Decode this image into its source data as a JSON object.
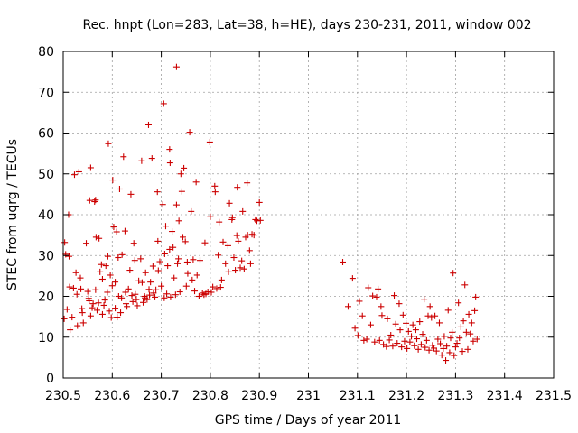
{
  "chart_data": {
    "type": "scatter",
    "title": "Rec. hnpt (Lon=283, Lat=38, h=HE), days 230-231, 2011, window 002",
    "xlabel": "GPS time / Days of year 2011",
    "ylabel": "STEC from uqrg / TECUs",
    "xlim": [
      230.5,
      231.5
    ],
    "ylim": [
      0,
      80
    ],
    "x_ticks": [
      "230.5",
      "230.6",
      "230.7",
      "230.8",
      "230.9",
      "231",
      "231.1",
      "231.2",
      "231.3",
      "231.4",
      "231.5"
    ],
    "y_ticks": [
      "0",
      "10",
      "20",
      "30",
      "40",
      "50",
      "60",
      "70",
      "80"
    ],
    "grid": true,
    "marker": "+",
    "color": "#cc0000",
    "points": [
      [
        230.502,
        14.5
      ],
      [
        230.503,
        33.2
      ],
      [
        230.505,
        30.3
      ],
      [
        230.508,
        16.8
      ],
      [
        230.511,
        40.0
      ],
      [
        230.512,
        29.8
      ],
      [
        230.513,
        22.3
      ],
      [
        230.514,
        11.8
      ],
      [
        230.518,
        14.9
      ],
      [
        230.521,
        22.0
      ],
      [
        230.523,
        49.8
      ],
      [
        230.526,
        25.8
      ],
      [
        230.528,
        20.5
      ],
      [
        230.529,
        12.8
      ],
      [
        230.532,
        50.5
      ],
      [
        230.535,
        24.5
      ],
      [
        230.536,
        21.8
      ],
      [
        230.538,
        17.0
      ],
      [
        230.539,
        16.0
      ],
      [
        230.541,
        13.5
      ],
      [
        230.547,
        33.0
      ],
      [
        230.55,
        21.2
      ],
      [
        230.552,
        19.5
      ],
      [
        230.553,
        18.9
      ],
      [
        230.554,
        43.5
      ],
      [
        230.556,
        51.5
      ],
      [
        230.556,
        15.2
      ],
      [
        230.559,
        17.2
      ],
      [
        230.561,
        18.2
      ],
      [
        230.564,
        43.2
      ],
      [
        230.566,
        43.6
      ],
      [
        230.566,
        21.6
      ],
      [
        230.567,
        34.5
      ],
      [
        230.569,
        16.6
      ],
      [
        230.572,
        18.4
      ],
      [
        230.573,
        34.2
      ],
      [
        230.575,
        26.0
      ],
      [
        230.578,
        27.8
      ],
      [
        230.58,
        24.2
      ],
      [
        230.58,
        15.6
      ],
      [
        230.583,
        17.8
      ],
      [
        230.585,
        19.1
      ],
      [
        230.587,
        27.5
      ],
      [
        230.59,
        21.0
      ],
      [
        230.591,
        29.8
      ],
      [
        230.592,
        57.4
      ],
      [
        230.594,
        16.4
      ],
      [
        230.596,
        25.2
      ],
      [
        230.598,
        14.8
      ],
      [
        230.6,
        22.6
      ],
      [
        230.601,
        48.5
      ],
      [
        230.603,
        37.0
      ],
      [
        230.606,
        17.1
      ],
      [
        230.606,
        23.5
      ],
      [
        230.609,
        35.8
      ],
      [
        230.61,
        14.9
      ],
      [
        230.612,
        29.5
      ],
      [
        230.613,
        20.0
      ],
      [
        230.615,
        46.3
      ],
      [
        230.617,
        16.0
      ],
      [
        230.619,
        19.6
      ],
      [
        230.62,
        30.2
      ],
      [
        230.623,
        54.2
      ],
      [
        230.626,
        36.0
      ],
      [
        230.627,
        21.0
      ],
      [
        230.628,
        18.2
      ],
      [
        230.63,
        17.5
      ],
      [
        230.633,
        21.8
      ],
      [
        230.636,
        26.4
      ],
      [
        230.638,
        45.0
      ],
      [
        230.64,
        20.2
      ],
      [
        230.642,
        18.7
      ],
      [
        230.644,
        33.0
      ],
      [
        230.646,
        28.8
      ],
      [
        230.647,
        20.5
      ],
      [
        230.649,
        19.2
      ],
      [
        230.651,
        17.7
      ],
      [
        230.654,
        23.8
      ],
      [
        230.658,
        29.2
      ],
      [
        230.66,
        53.2
      ],
      [
        230.661,
        23.4
      ],
      [
        230.663,
        18.5
      ],
      [
        230.666,
        20.0
      ],
      [
        230.667,
        19.6
      ],
      [
        230.668,
        25.8
      ],
      [
        230.671,
        19.2
      ],
      [
        230.674,
        62.0
      ],
      [
        230.675,
        21.7
      ],
      [
        230.676,
        20.3
      ],
      [
        230.678,
        23.5
      ],
      [
        230.681,
        53.8
      ],
      [
        230.683,
        27.4
      ],
      [
        230.684,
        20.8
      ],
      [
        230.687,
        19.8
      ],
      [
        230.689,
        21.6
      ],
      [
        230.692,
        45.6
      ],
      [
        230.693,
        33.5
      ],
      [
        230.694,
        26.3
      ],
      [
        230.697,
        28.5
      ],
      [
        230.7,
        22.5
      ],
      [
        230.703,
        42.5
      ],
      [
        230.705,
        67.2
      ],
      [
        230.706,
        19.6
      ],
      [
        230.707,
        30.4
      ],
      [
        230.709,
        37.2
      ],
      [
        230.711,
        20.6
      ],
      [
        230.713,
        27.5
      ],
      [
        230.717,
        56.0
      ],
      [
        230.717,
        31.5
      ],
      [
        230.718,
        52.7
      ],
      [
        230.719,
        19.8
      ],
      [
        230.722,
        35.9
      ],
      [
        230.724,
        32.0
      ],
      [
        230.726,
        24.5
      ],
      [
        230.729,
        20.4
      ],
      [
        230.731,
        76.2
      ],
      [
        230.731,
        42.4
      ],
      [
        230.733,
        28.0
      ],
      [
        230.735,
        29.2
      ],
      [
        230.736,
        38.5
      ],
      [
        230.738,
        21.1
      ],
      [
        230.74,
        50.0
      ],
      [
        230.742,
        45.7
      ],
      [
        230.744,
        34.5
      ],
      [
        230.746,
        51.4
      ],
      [
        230.749,
        33.4
      ],
      [
        230.751,
        22.5
      ],
      [
        230.753,
        28.4
      ],
      [
        230.754,
        25.6
      ],
      [
        230.758,
        60.2
      ],
      [
        230.761,
        40.8
      ],
      [
        230.763,
        24.0
      ],
      [
        230.765,
        29.0
      ],
      [
        230.768,
        21.3
      ],
      [
        230.771,
        48.0
      ],
      [
        230.773,
        25.2
      ],
      [
        230.777,
        20.0
      ],
      [
        230.779,
        28.8
      ],
      [
        230.784,
        20.8
      ],
      [
        230.787,
        20.4
      ],
      [
        230.789,
        33.1
      ],
      [
        230.791,
        20.6
      ],
      [
        230.795,
        21.1
      ],
      [
        230.799,
        57.8
      ],
      [
        230.8,
        39.5
      ],
      [
        230.802,
        21.0
      ],
      [
        230.805,
        22.3
      ],
      [
        230.809,
        47.0
      ],
      [
        230.81,
        45.6
      ],
      [
        230.813,
        21.9
      ],
      [
        230.816,
        30.1
      ],
      [
        230.818,
        38.2
      ],
      [
        230.821,
        22.2
      ],
      [
        230.823,
        24.0
      ],
      [
        230.826,
        33.3
      ],
      [
        230.831,
        28.0
      ],
      [
        230.836,
        32.4
      ],
      [
        230.837,
        26.0
      ],
      [
        230.839,
        42.8
      ],
      [
        230.844,
        38.8
      ],
      [
        230.845,
        39.3
      ],
      [
        230.848,
        29.5
      ],
      [
        230.851,
        26.4
      ],
      [
        230.854,
        34.9
      ],
      [
        230.855,
        46.7
      ],
      [
        230.857,
        33.5
      ],
      [
        230.861,
        27.0
      ],
      [
        230.864,
        28.7
      ],
      [
        230.866,
        40.8
      ],
      [
        230.869,
        26.7
      ],
      [
        230.872,
        34.5
      ],
      [
        230.875,
        47.8
      ],
      [
        230.876,
        35.0
      ],
      [
        230.88,
        31.2
      ],
      [
        230.882,
        28.0
      ],
      [
        230.885,
        35.2
      ],
      [
        230.889,
        35.0
      ],
      [
        230.892,
        38.8
      ],
      [
        230.895,
        38.5
      ],
      [
        230.9,
        43.0
      ],
      [
        230.902,
        38.6
      ],
      [
        231.07,
        28.4
      ],
      [
        231.081,
        17.5
      ],
      [
        231.09,
        24.4
      ],
      [
        231.095,
        12.2
      ],
      [
        231.101,
        10.4
      ],
      [
        231.104,
        18.8
      ],
      [
        231.11,
        15.2
      ],
      [
        231.113,
        9.2
      ],
      [
        231.119,
        9.5
      ],
      [
        231.122,
        22.1
      ],
      [
        231.127,
        13.0
      ],
      [
        231.131,
        20.1
      ],
      [
        231.135,
        8.8
      ],
      [
        231.139,
        19.8
      ],
      [
        231.142,
        21.8
      ],
      [
        231.145,
        9.2
      ],
      [
        231.148,
        17.5
      ],
      [
        231.15,
        15.3
      ],
      [
        231.153,
        8.2
      ],
      [
        231.159,
        7.7
      ],
      [
        231.161,
        14.5
      ],
      [
        231.165,
        9.3
      ],
      [
        231.168,
        10.5
      ],
      [
        231.172,
        7.8
      ],
      [
        231.175,
        20.2
      ],
      [
        231.178,
        13.2
      ],
      [
        231.181,
        8.5
      ],
      [
        231.185,
        18.2
      ],
      [
        231.187,
        11.8
      ],
      [
        231.19,
        7.6
      ],
      [
        231.193,
        15.4
      ],
      [
        231.196,
        9.0
      ],
      [
        231.199,
        13.4
      ],
      [
        231.201,
        7.2
      ],
      [
        231.204,
        11.4
      ],
      [
        231.207,
        8.8
      ],
      [
        231.21,
        10.2
      ],
      [
        231.213,
        13.0
      ],
      [
        231.216,
        7.9
      ],
      [
        231.219,
        11.8
      ],
      [
        231.221,
        9.6
      ],
      [
        231.224,
        7.0
      ],
      [
        231.227,
        13.8
      ],
      [
        231.23,
        8.2
      ],
      [
        231.233,
        10.7
      ],
      [
        231.236,
        19.3
      ],
      [
        231.238,
        7.5
      ],
      [
        231.241,
        9.2
      ],
      [
        231.244,
        15.2
      ],
      [
        231.246,
        6.8
      ],
      [
        231.248,
        17.5
      ],
      [
        231.251,
        14.8
      ],
      [
        231.253,
        8.0
      ],
      [
        231.256,
        7.3
      ],
      [
        231.258,
        15.2
      ],
      [
        231.261,
        6.6
      ],
      [
        231.264,
        9.5
      ],
      [
        231.267,
        13.5
      ],
      [
        231.269,
        8.4
      ],
      [
        231.272,
        5.6
      ],
      [
        231.275,
        7.2
      ],
      [
        231.277,
        10.2
      ],
      [
        231.28,
        4.3
      ],
      [
        231.282,
        7.8
      ],
      [
        231.285,
        16.6
      ],
      [
        231.288,
        6.2
      ],
      [
        231.29,
        9.8
      ],
      [
        231.293,
        11.2
      ],
      [
        231.295,
        25.7
      ],
      [
        231.297,
        5.5
      ],
      [
        231.3,
        7.6
      ],
      [
        231.303,
        8.5
      ],
      [
        231.306,
        18.4
      ],
      [
        231.308,
        9.8
      ],
      [
        231.311,
        12.5
      ],
      [
        231.314,
        6.5
      ],
      [
        231.316,
        14.0
      ],
      [
        231.319,
        22.8
      ],
      [
        231.322,
        11.2
      ],
      [
        231.325,
        7.0
      ],
      [
        231.327,
        15.6
      ],
      [
        231.33,
        10.8
      ],
      [
        231.333,
        13.5
      ],
      [
        231.336,
        9.0
      ],
      [
        231.339,
        16.5
      ],
      [
        231.341,
        19.8
      ],
      [
        231.344,
        9.5
      ]
    ]
  }
}
